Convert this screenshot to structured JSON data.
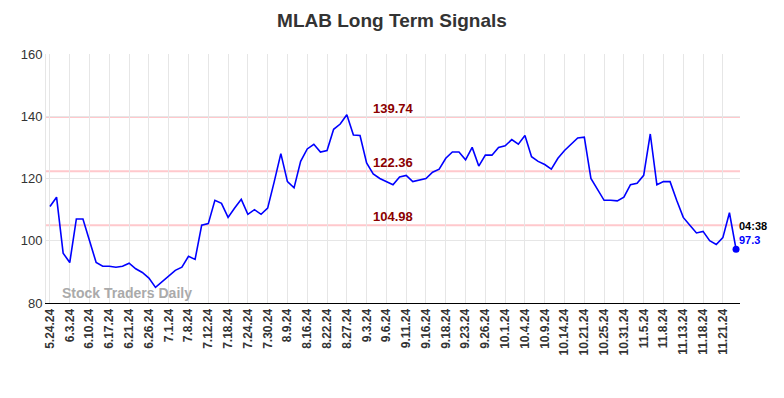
{
  "chart_data": {
    "type": "line",
    "title": "MLAB Long Term Signals",
    "categories": [
      "5.24.24",
      null,
      null,
      "6.3.24",
      null,
      null,
      "6.10.24",
      null,
      null,
      "6.17.24",
      null,
      null,
      "6.21.24",
      null,
      null,
      "6.26.24",
      null,
      null,
      "7.1.24",
      null,
      null,
      "7.8.24",
      null,
      null,
      "7.12.24",
      null,
      null,
      "7.18.24",
      null,
      null,
      "7.24.24",
      null,
      null,
      "7.30.24",
      null,
      null,
      "8.9.24",
      null,
      null,
      "8.16.24",
      null,
      null,
      "8.22.24",
      null,
      null,
      "8.27.24",
      null,
      null,
      "9.3.24",
      null,
      null,
      "9.6.24",
      null,
      null,
      "9.11.24",
      null,
      null,
      "9.16.24",
      null,
      null,
      "9.18.24",
      null,
      null,
      "9.23.24",
      null,
      null,
      "9.26.24",
      null,
      null,
      "10.1.24",
      null,
      null,
      "10.4.24",
      null,
      null,
      "10.9.24",
      null,
      null,
      "10.14.24",
      null,
      null,
      "10.21.24",
      null,
      null,
      "10.25.24",
      null,
      null,
      "10.31.24",
      null,
      null,
      "11.5.24",
      null,
      null,
      "11.8.24",
      null,
      null,
      "11.13.24",
      null,
      null,
      "11.18.24",
      null,
      null,
      "11.21.24",
      null,
      null
    ],
    "values": [
      111,
      114,
      96,
      93,
      107,
      107,
      100,
      93,
      91.8,
      91.8,
      91.5,
      91.8,
      92.8,
      91,
      89.8,
      88,
      85,
      86.8,
      88.5,
      90.5,
      91.5,
      95,
      94,
      105,
      105.5,
      113,
      112,
      107.5,
      110.5,
      113.3,
      108.5,
      110,
      108.5,
      110.5,
      119,
      128,
      119,
      117,
      125.5,
      129.5,
      131,
      128.5,
      129,
      135.8,
      137.5,
      140.5,
      134,
      133.8,
      125,
      121.5,
      120,
      119,
      118,
      120.5,
      121,
      119,
      119.5,
      120,
      122,
      123,
      126.5,
      128.5,
      128.5,
      126,
      130,
      124,
      127.5,
      127.5,
      130,
      130.5,
      132.5,
      131,
      133.8,
      127,
      125.5,
      124.5,
      123,
      126.5,
      129,
      131,
      133,
      133.3,
      120,
      116.5,
      113,
      113,
      112.8,
      114,
      118,
      118.5,
      121,
      134.3,
      118,
      119,
      119,
      113,
      107.5,
      105,
      102.5,
      103,
      100,
      98.8,
      101,
      109,
      97.3
    ],
    "color": "#0000ff",
    "levels": [
      139.74,
      122.36,
      104.98
    ],
    "end_time_label": "04:38",
    "watermark": "Stock Traders Daily",
    "ylim": [
      80,
      160
    ],
    "yticks": [
      80,
      100,
      120,
      140,
      160
    ],
    "grid": true
  }
}
